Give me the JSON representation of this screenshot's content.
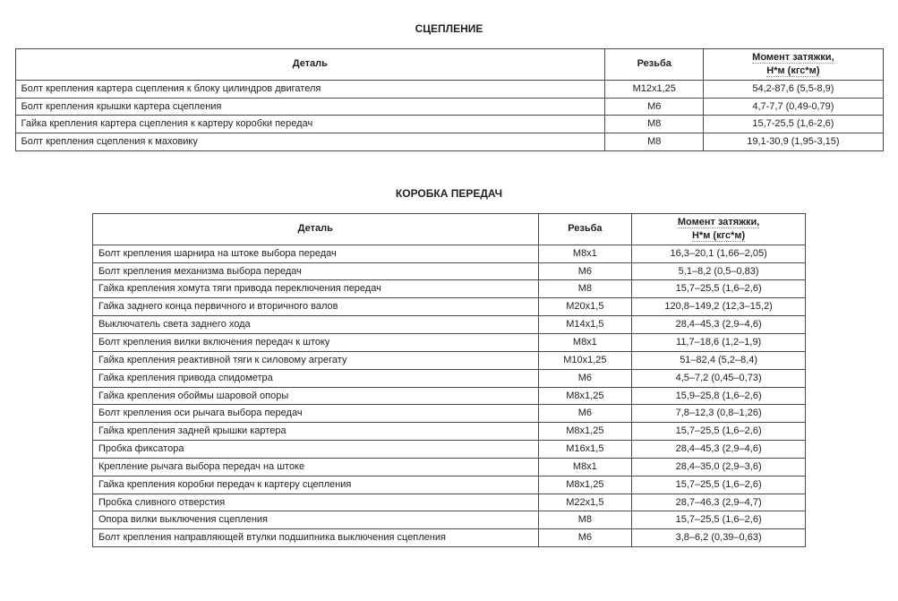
{
  "sections": [
    {
      "title": "СЦЕПЛЕНИЕ",
      "tableClass": "table1",
      "headers": {
        "part": "Деталь",
        "thread": "Резьба",
        "torqueLine1": "Момент затяжки,",
        "torqueLine2": "Н*м (кгс*м)"
      },
      "rows": [
        {
          "part": "Болт крепления картера сцепления к блоку цилиндров двигателя",
          "thread": "М12х1,25",
          "torque": "54,2-87,6 (5,5-8,9)"
        },
        {
          "part": "Болт крепления крышки картера сцепления",
          "thread": "М6",
          "torque": "4,7-7,7 (0,49-0,79)"
        },
        {
          "part": "Гайка крепления картера сцепления к картеру коробки передач",
          "thread": "М8",
          "torque": "15,7-25,5 (1,6-2,6)"
        },
        {
          "part": "Болт крепления сцепления к маховику",
          "thread": "М8",
          "torque": "19,1-30,9 (1,95-3,15)"
        }
      ]
    },
    {
      "title": "КОРОБКА ПЕРЕДАЧ",
      "tableClass": "table2",
      "headers": {
        "part": "Деталь",
        "thread": "Резьба",
        "torqueLine1": "Момент затяжки,",
        "torqueLine2": "Н*м (кгс*м)"
      },
      "rows": [
        {
          "part": "Болт крепления шарнира на штоке выбора передач",
          "thread": "М8х1",
          "torque": "16,3–20,1 (1,66–2,05)"
        },
        {
          "part": "Болт крепления механизма выбора передач",
          "thread": "М6",
          "torque": "5,1–8,2 (0,5–0,83)"
        },
        {
          "part": "Гайка крепления хомута тяги привода переключения передач",
          "thread": "М8",
          "torque": "15,7–25,5 (1,6–2,6)"
        },
        {
          "part": "Гайка заднего конца первичного и вторичного валов",
          "thread": "М20х1,5",
          "torque": "120,8–149,2 (12,3–15,2)"
        },
        {
          "part": "Выключатель света заднего хода",
          "thread": "М14х1,5",
          "torque": "28,4–45,3 (2,9–4,6)"
        },
        {
          "part": "Болт крепления вилки включения передач к штоку",
          "thread": "М8х1",
          "torque": "11,7–18,6 (1,2–1,9)"
        },
        {
          "part": "Гайка крепления реактивной тяги к силовому агрегату",
          "thread": "М10х1,25",
          "torque": "51–82,4 (5,2–8,4)"
        },
        {
          "part": "Гайка крепления привода спидометра",
          "thread": "М6",
          "torque": "4,5–7,2 (0,45–0,73)"
        },
        {
          "part": "Гайка крепления обоймы шаровой опоры",
          "thread": "М8х1,25",
          "torque": "15,9–25,8 (1,6–2,6)"
        },
        {
          "part": "Болт крепления оси рычага выбора передач",
          "thread": "М6",
          "torque": "7,8–12,3 (0,8–1,26)"
        },
        {
          "part": "Гайка крепления задней крышки картера",
          "thread": "М8х1,25",
          "torque": "15,7–25,5 (1,6–2,6)"
        },
        {
          "part": "Пробка фиксатора",
          "thread": "М16х1,5",
          "torque": "28,4–45,3 (2,9–4,6)"
        },
        {
          "part": "Крепление рычага выбора передач на штоке",
          "thread": "М8х1",
          "torque": "28,4–35,0 (2,9–3,6)"
        },
        {
          "part": "Гайка крепления коробки передач к картеру сцепления",
          "thread": "М8х1,25",
          "torque": "15,7–25,5 (1,6–2,6)"
        },
        {
          "part": "Пробка сливного отверстия",
          "thread": "М22х1,5",
          "torque": "28,7–46,3 (2,9–4,7)"
        },
        {
          "part": "Опора вилки выключения сцепления",
          "thread": "М8",
          "torque": "15,7–25,5 (1,6–2,6)"
        },
        {
          "part": "Болт крепления направляющей втулки подшипника выключения сцепления",
          "thread": "М6",
          "torque": "3,8–6,2 (0,39–0,63)"
        }
      ]
    }
  ]
}
